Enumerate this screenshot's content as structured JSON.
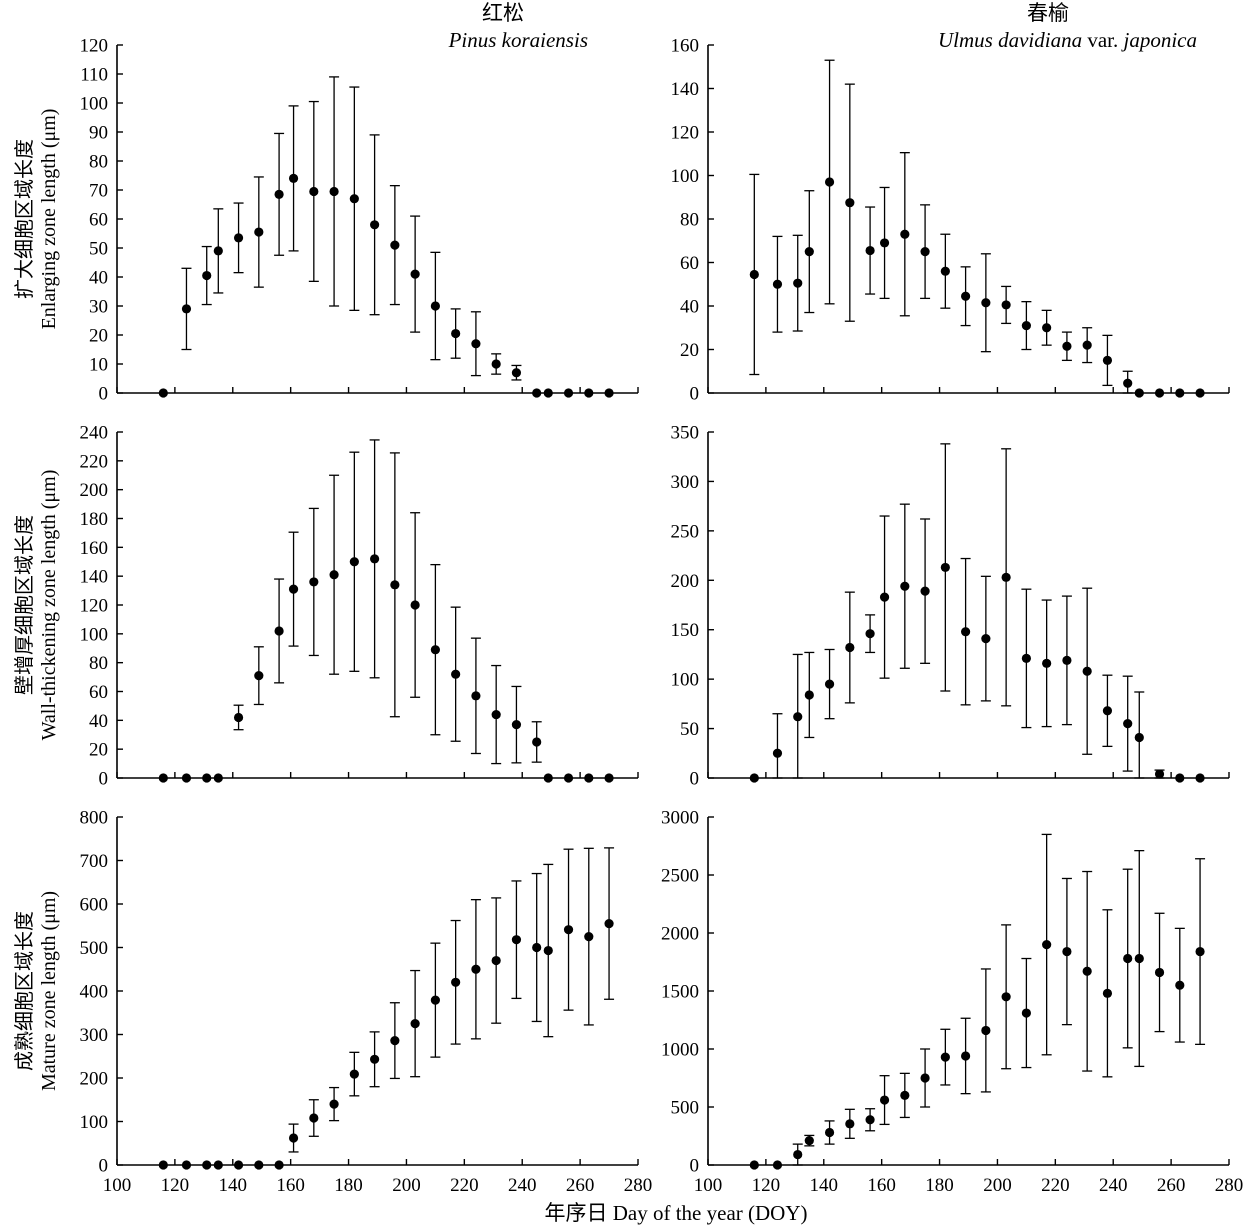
{
  "figure": {
    "columns": [
      {
        "title": "红松",
        "species_parts": [
          {
            "text": "Pinus koraiensis",
            "italic": true
          }
        ]
      },
      {
        "title": "春榆",
        "species_parts": [
          {
            "text": "Ulmus davidiana",
            "italic": true
          },
          {
            "text": " var. ",
            "italic": false
          },
          {
            "text": "japonica",
            "italic": true
          }
        ]
      }
    ],
    "xlabel": "年序日 Day of the year (DOY)"
  },
  "chart_data": [
    {
      "id": "pk-enlarging",
      "type": "scatter",
      "ylabel_cn": "扩大细胞区域长度",
      "ylabel_en": "Enlarging zone length (μm)",
      "xlim": [
        100,
        280
      ],
      "xticks": [
        100,
        120,
        140,
        160,
        180,
        200,
        220,
        240,
        260,
        280
      ],
      "ylim": [
        0,
        120
      ],
      "yticks": [
        0,
        10,
        20,
        30,
        40,
        50,
        60,
        70,
        80,
        90,
        100,
        110,
        120
      ],
      "x": [
        116,
        124,
        131,
        135,
        142,
        149,
        156,
        161,
        168,
        175,
        182,
        189,
        196,
        203,
        210,
        217,
        224,
        231,
        238,
        245,
        249,
        256,
        263,
        270
      ],
      "y": [
        0,
        29,
        40.5,
        49,
        53.5,
        55.5,
        68.5,
        74,
        69.5,
        69.5,
        67,
        58,
        51,
        41,
        30,
        20.5,
        17,
        10,
        7,
        0,
        0,
        0,
        0,
        0
      ],
      "err": [
        0,
        14,
        10,
        14.5,
        12,
        19,
        21,
        25,
        31,
        39.5,
        38.5,
        31,
        20.5,
        20,
        18.5,
        8.5,
        11,
        3.5,
        2.5,
        0,
        0,
        0,
        0,
        0
      ]
    },
    {
      "id": "ud-enlarging",
      "type": "scatter",
      "ylabel_cn": "",
      "ylabel_en": "",
      "xlim": [
        100,
        280
      ],
      "xticks": [
        100,
        120,
        140,
        160,
        180,
        200,
        220,
        240,
        260,
        280
      ],
      "ylim": [
        0,
        160
      ],
      "yticks": [
        0,
        20,
        40,
        60,
        80,
        100,
        120,
        140,
        160
      ],
      "x": [
        116,
        124,
        131,
        135,
        142,
        149,
        156,
        161,
        168,
        175,
        182,
        189,
        196,
        203,
        210,
        217,
        224,
        231,
        238,
        245,
        249,
        256,
        263,
        270
      ],
      "y": [
        54.5,
        50,
        50.5,
        65,
        97,
        87.5,
        65.5,
        69,
        73,
        65,
        56,
        44.5,
        41.5,
        40.5,
        31,
        30,
        21.5,
        22,
        15,
        4.5,
        0,
        0,
        0,
        0
      ],
      "err": [
        46,
        22,
        22,
        28,
        56,
        54.5,
        20,
        25.5,
        37.5,
        21.5,
        17,
        13.5,
        22.5,
        8.5,
        11,
        8,
        6.5,
        8,
        11.5,
        5.5,
        0,
        0,
        0,
        0
      ]
    },
    {
      "id": "pk-wall-thickening",
      "type": "scatter",
      "ylabel_cn": "壁增厚细胞区域长度",
      "ylabel_en": "Wall-thickening zone length (μm)",
      "xlim": [
        100,
        280
      ],
      "xticks": [
        100,
        120,
        140,
        160,
        180,
        200,
        220,
        240,
        260,
        280
      ],
      "ylim": [
        0,
        240
      ],
      "yticks": [
        0,
        20,
        40,
        60,
        80,
        100,
        120,
        140,
        160,
        180,
        200,
        220,
        240
      ],
      "x": [
        116,
        124,
        131,
        135,
        142,
        149,
        156,
        161,
        168,
        175,
        182,
        189,
        196,
        203,
        210,
        217,
        224,
        231,
        238,
        245,
        249,
        256,
        263,
        270
      ],
      "y": [
        0,
        0,
        0,
        0,
        42,
        71,
        102,
        131,
        136,
        141,
        150,
        152,
        134,
        120,
        89,
        72,
        57,
        44,
        37,
        25,
        0,
        0,
        0,
        0
      ],
      "err": [
        0,
        0,
        0,
        0,
        8.5,
        20,
        36,
        39.5,
        51,
        69,
        76,
        82.5,
        91.5,
        64,
        59,
        46.5,
        40,
        34,
        26.5,
        14,
        0,
        0,
        0,
        0
      ]
    },
    {
      "id": "ud-wall-thickening",
      "type": "scatter",
      "ylabel_cn": "",
      "ylabel_en": "",
      "xlim": [
        100,
        280
      ],
      "xticks": [
        100,
        120,
        140,
        160,
        180,
        200,
        220,
        240,
        260,
        280
      ],
      "ylim": [
        0,
        350
      ],
      "yticks": [
        0,
        50,
        100,
        150,
        200,
        250,
        300,
        350
      ],
      "x": [
        116,
        124,
        131,
        135,
        142,
        149,
        156,
        161,
        168,
        175,
        182,
        189,
        196,
        203,
        210,
        217,
        224,
        231,
        238,
        245,
        249,
        256,
        263,
        270
      ],
      "y": [
        0,
        25,
        62,
        84,
        95,
        132,
        146,
        183,
        194,
        189,
        213,
        148,
        141,
        203,
        121,
        116,
        119,
        108,
        68,
        55,
        41,
        4,
        0,
        0
      ],
      "err": [
        0,
        40,
        63,
        43,
        35,
        56,
        19,
        82,
        83,
        73,
        125,
        74,
        63,
        130,
        70,
        64,
        65,
        84,
        36,
        48,
        46,
        4,
        0,
        0
      ]
    },
    {
      "id": "pk-mature",
      "type": "scatter",
      "ylabel_cn": "成熟细胞区域长度",
      "ylabel_en": "Mature zone length (μm)",
      "xlim": [
        100,
        280
      ],
      "xticks": [
        100,
        120,
        140,
        160,
        180,
        200,
        220,
        240,
        260,
        280
      ],
      "ylim": [
        0,
        800
      ],
      "yticks": [
        0,
        100,
        200,
        300,
        400,
        500,
        600,
        700,
        800
      ],
      "x": [
        116,
        124,
        131,
        135,
        142,
        149,
        156,
        161,
        168,
        175,
        182,
        189,
        196,
        203,
        210,
        217,
        224,
        231,
        238,
        245,
        249,
        256,
        263,
        270
      ],
      "y": [
        0,
        0,
        0,
        0,
        0,
        0,
        0,
        62,
        108,
        140,
        209,
        243,
        286,
        325,
        379,
        420,
        450,
        470,
        518,
        500,
        493,
        541,
        525,
        555
      ],
      "err": [
        0,
        0,
        0,
        0,
        0,
        0,
        0,
        32,
        42,
        38,
        50,
        63,
        87,
        122,
        131,
        142,
        160,
        144,
        135,
        170,
        198,
        185,
        203,
        174
      ]
    },
    {
      "id": "ud-mature",
      "type": "scatter",
      "ylabel_cn": "",
      "ylabel_en": "",
      "xlim": [
        100,
        280
      ],
      "xticks": [
        100,
        120,
        140,
        160,
        180,
        200,
        220,
        240,
        260,
        280
      ],
      "ylim": [
        0,
        3000
      ],
      "yticks": [
        0,
        500,
        1000,
        1500,
        2000,
        2500,
        3000
      ],
      "x": [
        116,
        124,
        131,
        135,
        142,
        149,
        156,
        161,
        168,
        175,
        182,
        189,
        196,
        203,
        210,
        217,
        224,
        231,
        238,
        245,
        249,
        256,
        263,
        270
      ],
      "y": [
        0,
        0,
        90,
        210,
        280,
        355,
        390,
        560,
        600,
        750,
        930,
        940,
        1160,
        1450,
        1310,
        1900,
        1840,
        1670,
        1480,
        1780,
        1780,
        1660,
        1550,
        1840
      ],
      "err": [
        0,
        0,
        90,
        45,
        100,
        125,
        95,
        210,
        190,
        250,
        240,
        325,
        530,
        620,
        470,
        950,
        630,
        860,
        720,
        770,
        930,
        510,
        490,
        800
      ]
    }
  ]
}
